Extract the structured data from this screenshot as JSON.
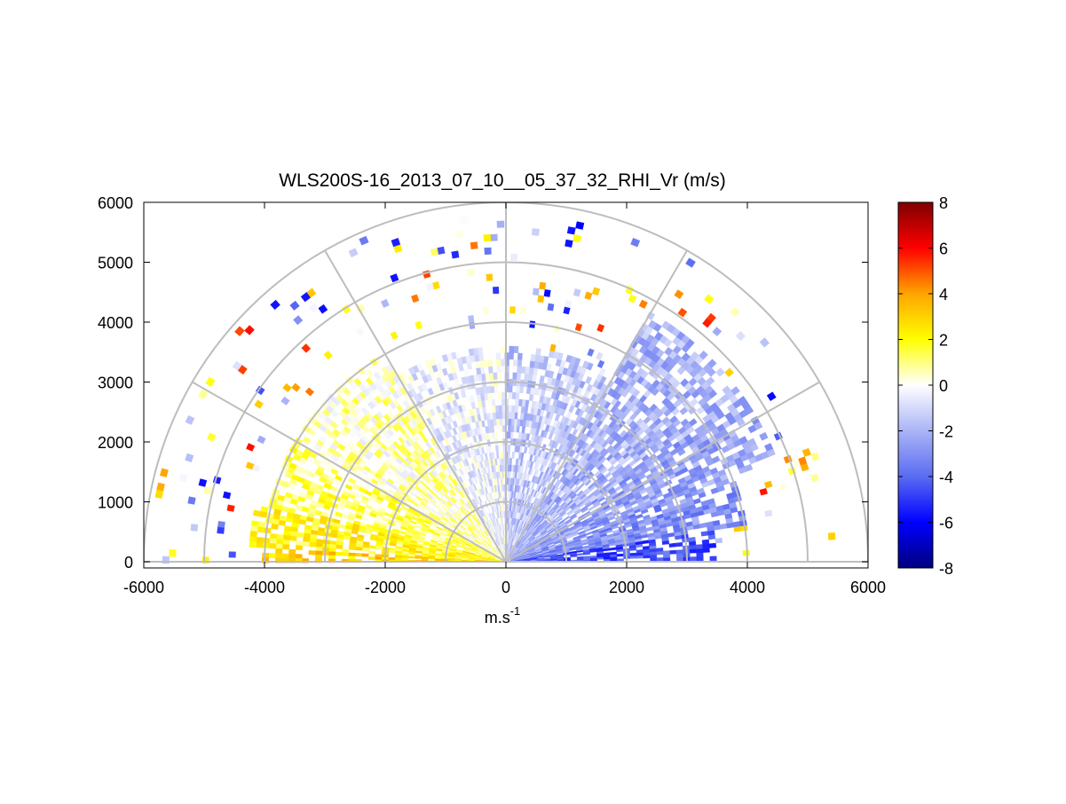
{
  "chart_data": {
    "type": "heatmap",
    "title": "WLS200S-16_2013_07_10__05_37_32_RHI_Vr (m/s)",
    "xlabel_base": "m.s",
    "xlabel_sup": "-1",
    "ylabel": "",
    "xlim": [
      -6000,
      6000
    ],
    "ylim": [
      0,
      6000
    ],
    "xticks": [
      -6000,
      -4000,
      -2000,
      0,
      2000,
      4000,
      6000
    ],
    "xtick_labels": [
      "-6000",
      "-4000",
      "-2000",
      "0",
      "2000",
      "4000",
      "6000"
    ],
    "yticks": [
      0,
      1000,
      2000,
      3000,
      4000,
      5000,
      6000
    ],
    "ytick_labels": [
      "0",
      "1000",
      "2000",
      "3000",
      "4000",
      "5000",
      "6000"
    ],
    "polar_grid": {
      "range_rings": [
        1000,
        2000,
        3000,
        4000,
        5000,
        6000
      ],
      "spoke_angles_deg": [
        0,
        30,
        60,
        90,
        120,
        150,
        180
      ]
    },
    "colorbar": {
      "min": -8,
      "max": 8,
      "ticks": [
        8,
        6,
        4,
        2,
        0,
        -2,
        -4,
        -6,
        -8
      ],
      "tick_labels": [
        "8",
        "6",
        "4",
        "2",
        "0",
        "-2",
        "-4",
        "-6",
        "-8"
      ],
      "colormap": [
        "#00007f",
        "#0000ff",
        "#5a6cf2",
        "#aab4f6",
        "#ffffff",
        "#ffff00",
        "#ffa500",
        "#ff0000",
        "#7f0000"
      ],
      "placement": "right"
    },
    "sector_summary": [
      {
        "elev_range_deg": [
          0,
          8
        ],
        "max_range_m": 3400,
        "vr_ms": -4.5
      },
      {
        "elev_range_deg": [
          8,
          20
        ],
        "max_range_m": 4000,
        "vr_ms": -3
      },
      {
        "elev_range_deg": [
          20,
          35
        ],
        "max_range_m": 4800,
        "vr_ms": -2.5
      },
      {
        "elev_range_deg": [
          35,
          60
        ],
        "max_range_m": 4800,
        "vr_ms": -2
      },
      {
        "elev_range_deg": [
          60,
          90
        ],
        "max_range_m": 3500,
        "vr_ms": -1.5
      },
      {
        "elev_range_deg": [
          90,
          120
        ],
        "max_range_m": 3500,
        "vr_ms": -0.5
      },
      {
        "elev_range_deg": [
          120,
          150
        ],
        "max_range_m": 4000,
        "vr_ms": 0.5
      },
      {
        "elev_range_deg": [
          150,
          165
        ],
        "max_range_m": 4000,
        "vr_ms": 1.2
      },
      {
        "elev_range_deg": [
          165,
          176
        ],
        "max_range_m": 4200,
        "vr_ms": 2
      },
      {
        "elev_range_deg": [
          176,
          180
        ],
        "max_range_m": 4000,
        "vr_ms": 3
      }
    ]
  }
}
